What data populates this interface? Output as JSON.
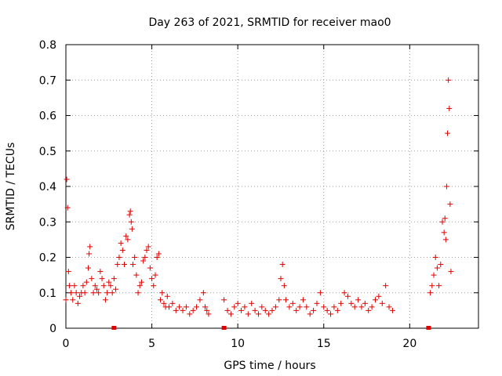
{
  "chart_data": {
    "type": "scatter",
    "title": "Day 263 of 2021, SRMTID for receiver mao0",
    "xlabel": "GPS time / hours",
    "ylabel": "SRMTID / TECUs",
    "xlim": [
      0,
      24
    ],
    "ylim": [
      0,
      0.8
    ],
    "xticks": [
      "0",
      "5",
      "10",
      "15",
      "20"
    ],
    "yticks": [
      "0",
      "0.1",
      "0.2",
      "0.3",
      "0.4",
      "0.5",
      "0.6",
      "0.7",
      "0.8"
    ],
    "grid": true,
    "legend": "none",
    "series": [
      {
        "name": "SRMTID",
        "marker": "plus",
        "color": "#e00000",
        "x": [
          0.0,
          0.05,
          0.1,
          0.15,
          0.2,
          0.3,
          0.4,
          0.5,
          0.6,
          0.7,
          0.8,
          0.9,
          1.0,
          1.1,
          1.2,
          1.3,
          1.35,
          1.4,
          1.5,
          1.6,
          1.7,
          1.8,
          1.9,
          2.0,
          2.1,
          2.2,
          2.3,
          2.4,
          2.5,
          2.6,
          2.7,
          2.8,
          2.9,
          3.0,
          3.1,
          3.2,
          3.3,
          3.4,
          3.5,
          3.6,
          3.7,
          3.75,
          3.8,
          3.85,
          3.9,
          4.0,
          4.1,
          4.2,
          4.3,
          4.4,
          4.5,
          4.6,
          4.7,
          4.8,
          4.9,
          5.0,
          5.1,
          5.2,
          5.3,
          5.4,
          5.5,
          5.6,
          5.7,
          5.8,
          5.9,
          6.0,
          6.2,
          6.4,
          6.6,
          6.8,
          7.0,
          7.2,
          7.4,
          7.6,
          7.8,
          8.0,
          8.1,
          8.2,
          8.3,
          9.2,
          9.4,
          9.6,
          9.8,
          10.0,
          10.2,
          10.4,
          10.6,
          10.8,
          11.0,
          11.2,
          11.4,
          11.6,
          11.8,
          12.0,
          12.2,
          12.4,
          12.5,
          12.6,
          12.7,
          12.8,
          13.0,
          13.2,
          13.4,
          13.6,
          13.8,
          14.0,
          14.2,
          14.4,
          14.6,
          14.8,
          15.0,
          15.2,
          15.4,
          15.6,
          15.8,
          16.0,
          16.2,
          16.4,
          16.6,
          16.8,
          17.0,
          17.2,
          17.4,
          17.6,
          17.8,
          18.0,
          18.2,
          18.4,
          18.6,
          18.8,
          19.0,
          21.2,
          21.3,
          21.4,
          21.5,
          21.6,
          21.7,
          21.8,
          21.9,
          22.0,
          22.05,
          22.1,
          22.15,
          22.2,
          22.25,
          22.3,
          22.35,
          22.4
        ],
        "y": [
          0.08,
          0.42,
          0.34,
          0.16,
          0.12,
          0.1,
          0.08,
          0.12,
          0.1,
          0.07,
          0.09,
          0.1,
          0.12,
          0.1,
          0.13,
          0.17,
          0.21,
          0.23,
          0.14,
          0.1,
          0.12,
          0.11,
          0.1,
          0.16,
          0.14,
          0.12,
          0.08,
          0.1,
          0.13,
          0.12,
          0.1,
          0.14,
          0.11,
          0.18,
          0.2,
          0.24,
          0.22,
          0.18,
          0.26,
          0.25,
          0.32,
          0.33,
          0.3,
          0.28,
          0.18,
          0.2,
          0.15,
          0.1,
          0.12,
          0.13,
          0.19,
          0.2,
          0.22,
          0.23,
          0.17,
          0.14,
          0.12,
          0.15,
          0.2,
          0.21,
          0.08,
          0.1,
          0.07,
          0.06,
          0.09,
          0.06,
          0.07,
          0.05,
          0.06,
          0.05,
          0.06,
          0.04,
          0.05,
          0.06,
          0.08,
          0.1,
          0.06,
          0.05,
          0.04,
          0.08,
          0.05,
          0.04,
          0.06,
          0.07,
          0.05,
          0.06,
          0.04,
          0.07,
          0.05,
          0.04,
          0.06,
          0.05,
          0.04,
          0.05,
          0.06,
          0.08,
          0.14,
          0.18,
          0.12,
          0.08,
          0.06,
          0.07,
          0.05,
          0.06,
          0.08,
          0.06,
          0.04,
          0.05,
          0.07,
          0.1,
          0.06,
          0.05,
          0.04,
          0.06,
          0.05,
          0.07,
          0.1,
          0.09,
          0.07,
          0.06,
          0.08,
          0.06,
          0.07,
          0.05,
          0.06,
          0.08,
          0.09,
          0.07,
          0.12,
          0.06,
          0.05,
          0.1,
          0.12,
          0.15,
          0.2,
          0.17,
          0.12,
          0.18,
          0.3,
          0.27,
          0.31,
          0.25,
          0.4,
          0.55,
          0.7,
          0.62,
          0.35,
          0.16
        ]
      }
    ],
    "gap_markers_x": [
      2.8,
      9.2,
      21.1
    ]
  }
}
